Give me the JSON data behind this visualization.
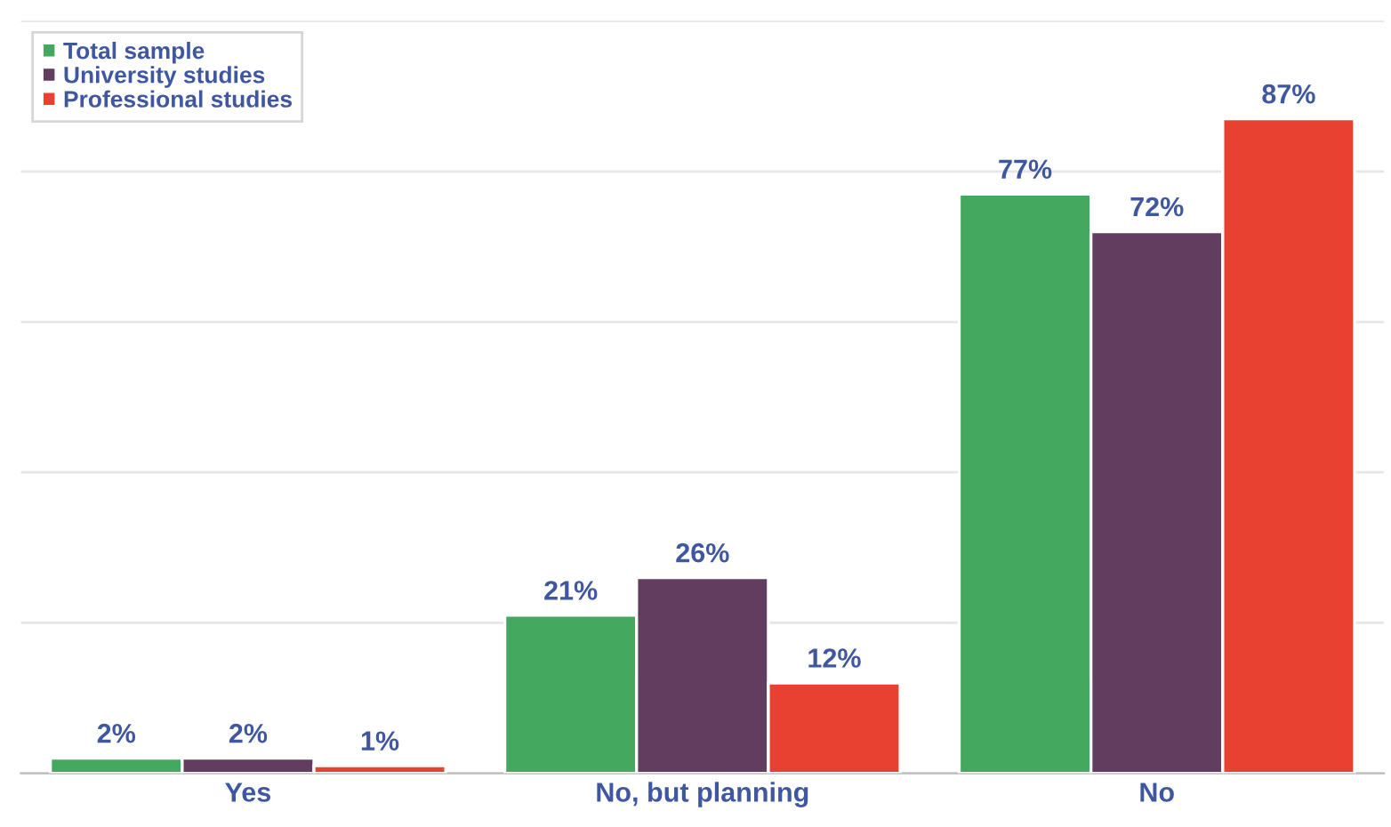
{
  "chart_data": {
    "type": "bar",
    "categories": [
      "Yes",
      "No, but planning",
      "No"
    ],
    "series": [
      {
        "name": "Total sample",
        "color": "#45a85f",
        "values": [
          2,
          21,
          77
        ],
        "value_labels": [
          "2%",
          "21%",
          "77%"
        ]
      },
      {
        "name": "University studies",
        "color": "#623d5f",
        "values": [
          2,
          26,
          72
        ],
        "value_labels": [
          "2%",
          "26%",
          "72%"
        ]
      },
      {
        "name": "Professional studies",
        "color": "#e84132",
        "values": [
          1,
          12,
          87
        ],
        "value_labels": [
          "1%",
          "12%",
          "87%"
        ]
      }
    ],
    "tick_labels": "x",
    "grid": "y",
    "legend": "top left"
  }
}
